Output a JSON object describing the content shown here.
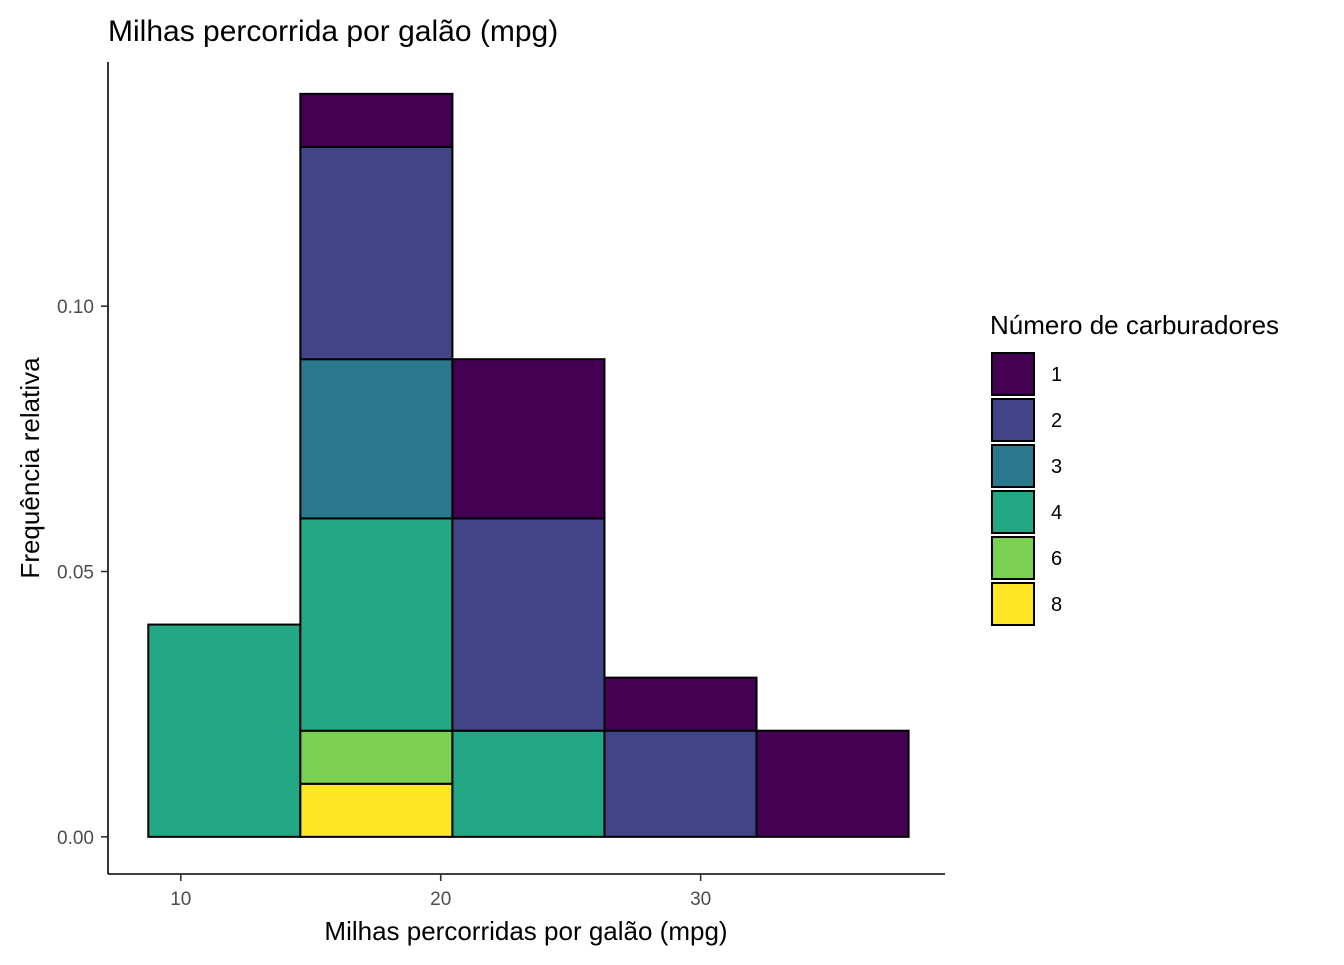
{
  "chart_data": {
    "type": "bar",
    "title": "Milhas percorrida por galão (mpg)",
    "xlabel": "Milhas percorridas por galão (mpg)",
    "ylabel": "Frequência relativa",
    "xlim": [
      7.2,
      39.4
    ],
    "ylim": [
      -0.007,
      0.146
    ],
    "x_ticks": [
      10,
      20,
      30
    ],
    "x_tick_labels": [
      "10",
      "20",
      "30"
    ],
    "y_ticks": [
      0.0,
      0.05,
      0.1
    ],
    "y_tick_labels": [
      "0.00",
      "0.05",
      "0.10"
    ],
    "grid": false,
    "stacked": true,
    "legend": {
      "title": "Número de carburadores",
      "position": "right"
    },
    "bins": [
      {
        "x_start": 8.75,
        "x_end": 14.6
      },
      {
        "x_start": 14.6,
        "x_end": 20.45
      },
      {
        "x_start": 20.45,
        "x_end": 26.3
      },
      {
        "x_start": 26.3,
        "x_end": 32.15
      },
      {
        "x_start": 32.15,
        "x_end": 38.0
      }
    ],
    "series": [
      {
        "name": "1",
        "color": "#440154",
        "values": [
          0.0,
          0.01,
          0.03,
          0.01,
          0.02
        ]
      },
      {
        "name": "2",
        "color": "#414487",
        "values": [
          0.0,
          0.04,
          0.04,
          0.02,
          0.0
        ]
      },
      {
        "name": "3",
        "color": "#2A788E",
        "values": [
          0.0,
          0.03,
          0.0,
          0.0,
          0.0
        ]
      },
      {
        "name": "4",
        "color": "#22A884",
        "values": [
          0.04,
          0.04,
          0.02,
          0.0,
          0.0
        ]
      },
      {
        "name": "6",
        "color": "#7AD151",
        "values": [
          0.0,
          0.01,
          0.0,
          0.0,
          0.0
        ]
      },
      {
        "name": "8",
        "color": "#FDE725",
        "values": [
          0.0,
          0.01,
          0.0,
          0.0,
          0.0
        ]
      }
    ]
  }
}
